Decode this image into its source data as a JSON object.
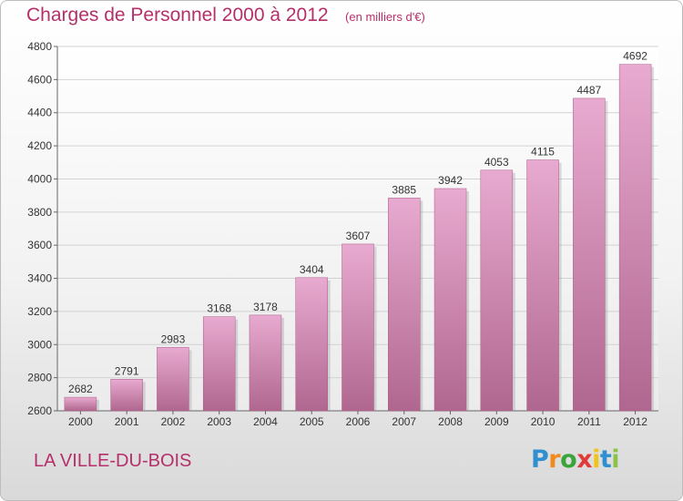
{
  "chart_data": {
    "type": "bar",
    "title": "Charges de Personnel 2000 à 2012",
    "subtitle": "(en milliers d'€)",
    "categories": [
      "2000",
      "2001",
      "2002",
      "2003",
      "2004",
      "2005",
      "2006",
      "2007",
      "2008",
      "2009",
      "2010",
      "2011",
      "2012"
    ],
    "values": [
      2682,
      2791,
      2983,
      3168,
      3178,
      3404,
      3607,
      3885,
      3942,
      4053,
      4115,
      4487,
      4692
    ],
    "ylim": [
      2600,
      4800
    ],
    "yticks": [
      2600,
      2800,
      3000,
      3200,
      3400,
      3600,
      3800,
      4000,
      4200,
      4400,
      4600,
      4800
    ],
    "grid": true,
    "bar_color": "#c76f9e"
  },
  "commune": "LA VILLE-DU-BOIS",
  "logo": {
    "letters": [
      "P",
      "r",
      "o",
      "x",
      "i",
      "t",
      "i"
    ],
    "colors": [
      "#2f8fd0",
      "#f08a1c",
      "#3aa43a",
      "#e23a3a",
      "#f0c419",
      "#2f8fd0",
      "#8bc34a"
    ]
  }
}
